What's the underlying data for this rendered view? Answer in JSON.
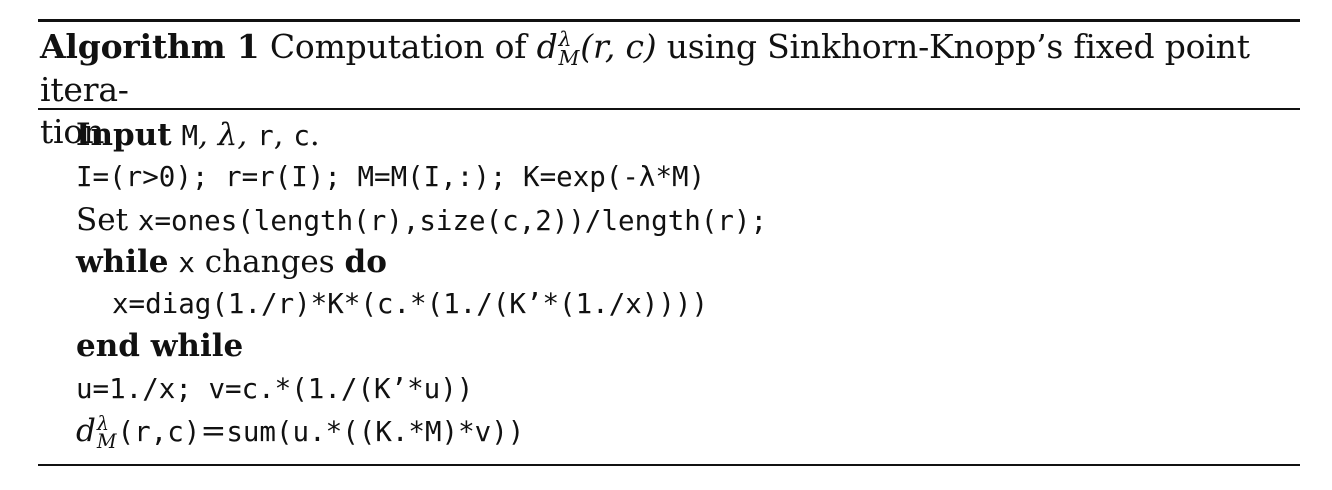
{
  "caption": {
    "label": "Algorithm 1",
    "text_before": "Computation of",
    "d_symbol": "d",
    "sup": "λ",
    "sub": "M",
    "args": "(r, c)",
    "text_after": "using Sinkhorn-Knopp’s fixed point itera-",
    "text_wrap": "tion"
  },
  "lines": {
    "input_kw": "Input",
    "input_args_M": "M",
    "input_args_rest_1": ", λ,",
    "input_args_r": "r",
    "input_args_comma": ",",
    "input_args_c": "c",
    "input_args_end": ".",
    "line2": "I=(r>0); r=r(I); M=M(I,:); K=exp(-λ*M)",
    "set_word": "Set",
    "set_code": "x=ones(length(r),size(c,2))/length(r);",
    "while_kw": "while",
    "while_var": "x",
    "while_changes": "changes",
    "while_do": "do",
    "update": "x=diag(1./r)*K*(c.*(1./(K’*(1./x))))",
    "end_while": "end while",
    "line7": "u=1./x; v=c.*(1./(K’*u))",
    "last_d": "d",
    "last_sup": "λ",
    "last_sub": "M",
    "last_args": "(r,c)",
    "last_eq": "=",
    "last_code": "sum(u.*((K.*M)*v))"
  }
}
